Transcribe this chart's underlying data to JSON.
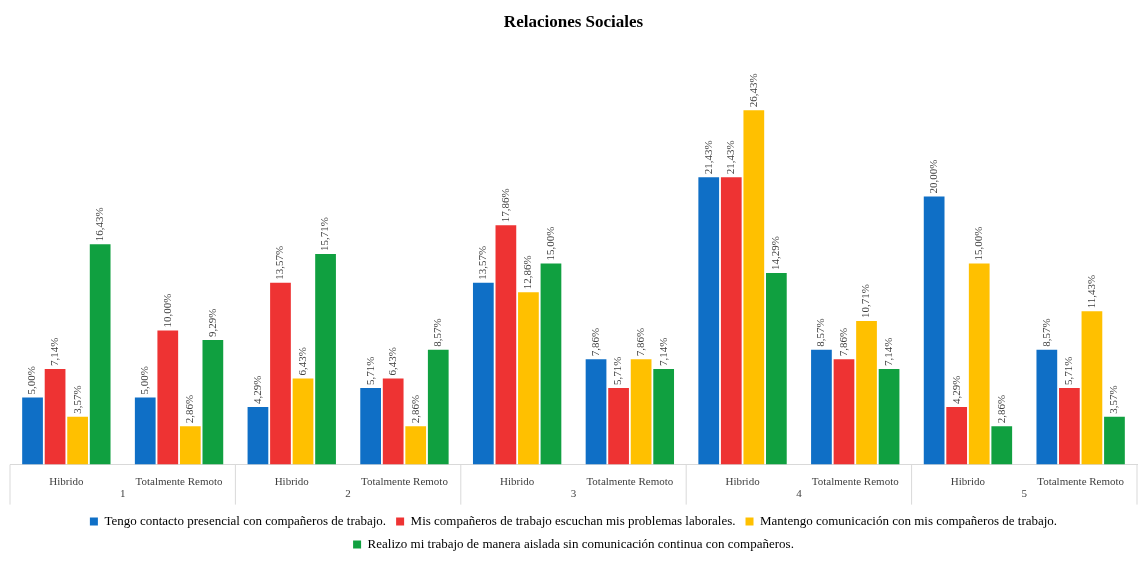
{
  "chart_data": {
    "type": "bar",
    "title": "Relaciones Sociales",
    "categories": [
      "Hibrido",
      "Totalmente Remoto",
      "Hibrido",
      "Totalmente Remoto",
      "Hibrido",
      "Totalmente Remoto",
      "Hibrido",
      "Totalmente Remoto",
      "Hibrido",
      "Totalmente Remoto"
    ],
    "annotations": [
      "1",
      "2",
      "3",
      "4",
      "5"
    ],
    "series": [
      {
        "name": "Tengo contacto presencial con compañeros de trabajo.",
        "color": "#0f6fc6",
        "values": [
          5.0,
          5.0,
          4.29,
          5.71,
          13.57,
          7.86,
          21.43,
          8.57,
          20.0,
          8.57
        ],
        "value_labels": [
          "5,00%",
          "5,00%",
          "4,29%",
          "5,71%",
          "13,57%",
          "7,86%",
          "21,43%",
          "8,57%",
          "20,00%",
          "8,57%"
        ]
      },
      {
        "name": "Mis compañeros de trabajo escuchan mis problemas laborales.",
        "color": "#ee3333",
        "values": [
          7.14,
          10.0,
          13.57,
          6.43,
          17.86,
          5.71,
          21.43,
          7.86,
          4.29,
          5.71
        ],
        "value_labels": [
          "7,14%",
          "10,00%",
          "13,57%",
          "6,43%",
          "17,86%",
          "5,71%",
          "21,43%",
          "7,86%",
          "4,29%",
          "5,71%"
        ]
      },
      {
        "name": "Mantengo comunicación con mis compañeros de trabajo.",
        "color": "#ffc000",
        "values": [
          3.57,
          2.86,
          6.43,
          2.86,
          12.86,
          7.86,
          26.43,
          10.71,
          15.0,
          11.43
        ],
        "value_labels": [
          "3,57%",
          "2,86%",
          "6,43%",
          "2,86%",
          "12,86%",
          "7,86%",
          "26,43%",
          "10,71%",
          "15,00%",
          "11,43%"
        ]
      },
      {
        "name": "Realizo mi trabajo de manera aislada sin comunicación continua con compañeros.",
        "color": "#10a040",
        "values": [
          16.43,
          9.29,
          15.71,
          8.57,
          15.0,
          7.14,
          14.29,
          7.14,
          2.86,
          3.57
        ],
        "value_labels": [
          "16,43%",
          "9,29%",
          "15,71%",
          "8,57%",
          "15,00%",
          "7,14%",
          "14,29%",
          "7,14%",
          "2,86%",
          "3,57%"
        ]
      }
    ],
    "legend": "bottom"
  }
}
